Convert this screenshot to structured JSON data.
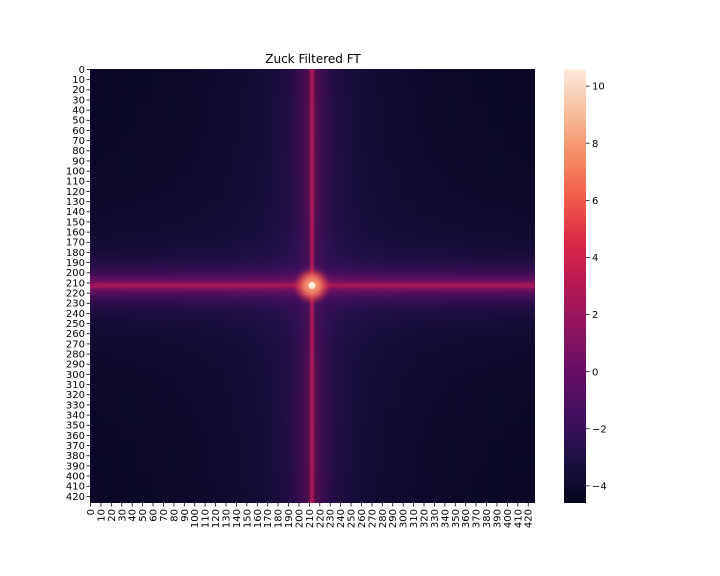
{
  "chart_data": {
    "type": "heatmap",
    "title": "Zuck Filtered FT",
    "xlabel": "",
    "ylabel": "",
    "size": [
      427,
      427
    ],
    "x_tick_labels": [
      "0",
      "10",
      "20",
      "30",
      "40",
      "50",
      "60",
      "70",
      "80",
      "90",
      "100",
      "110",
      "120",
      "130",
      "140",
      "150",
      "160",
      "170",
      "180",
      "190",
      "200",
      "210",
      "220",
      "230",
      "240",
      "250",
      "260",
      "270",
      "280",
      "290",
      "300",
      "310",
      "320",
      "330",
      "340",
      "350",
      "360",
      "370",
      "380",
      "390",
      "400",
      "410",
      "420"
    ],
    "y_tick_labels": [
      "0",
      "10",
      "20",
      "30",
      "40",
      "50",
      "60",
      "70",
      "80",
      "90",
      "100",
      "110",
      "120",
      "130",
      "140",
      "150",
      "160",
      "170",
      "180",
      "190",
      "200",
      "210",
      "220",
      "230",
      "240",
      "250",
      "260",
      "270",
      "280",
      "290",
      "300",
      "310",
      "320",
      "330",
      "340",
      "350",
      "360",
      "370",
      "380",
      "390",
      "400",
      "410",
      "420"
    ],
    "colorbar": {
      "range": [
        -4.6,
        10.6
      ],
      "tick_labels": [
        "10",
        "8",
        "6",
        "4",
        "2",
        "0",
        "−2",
        "−4"
      ],
      "tick_values": [
        10,
        8,
        6,
        4,
        2,
        0,
        -2,
        -4
      ],
      "colormap": "rocket"
    },
    "features": {
      "peak_center": [
        213,
        213
      ],
      "peak_value": 10.6,
      "background_value": -4.4,
      "cross_line_value": 2.3,
      "grid": false
    }
  }
}
